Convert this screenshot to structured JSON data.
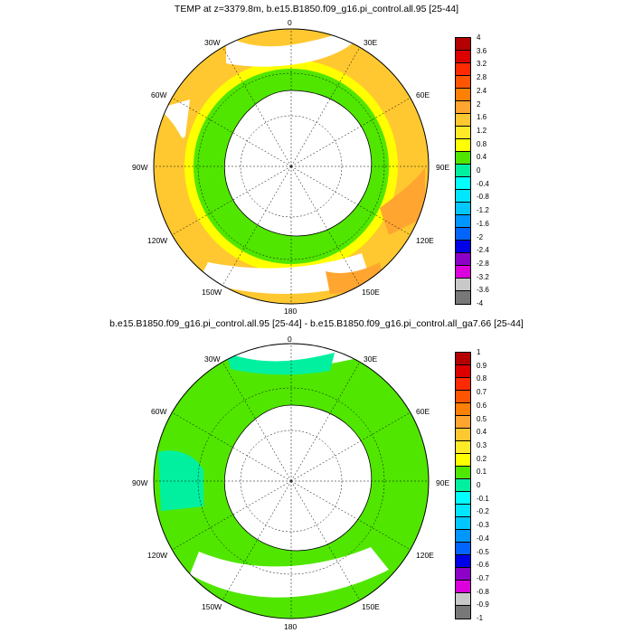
{
  "panels": [
    {
      "title": "TEMP at z=3379.8m, b.e15.B1850.f09_g16.pi_control.all.95 [25-44]",
      "lon_labels": {
        "top": "0",
        "tr": "30E",
        "rt": "60E",
        "right": "90E",
        "br": "120E",
        "bt": "150E",
        "bottom": "180",
        "bl": "150W",
        "lb": "120W",
        "left": "90W",
        "lt": "60W",
        "tl": "30W"
      },
      "colorbar": {
        "labels": [
          "4",
          "3.6",
          "3.2",
          "2.8",
          "2.4",
          "2",
          "1.6",
          "1.2",
          "0.8",
          "0.4",
          "0",
          "-0.4",
          "-0.8",
          "-1.2",
          "-1.6",
          "-2",
          "-2.4",
          "-2.8",
          "-3.2",
          "-3.6",
          "-4"
        ],
        "colors": [
          "#b40000",
          "#dc0000",
          "#ff2a00",
          "#ff5500",
          "#ff8000",
          "#ffa530",
          "#ffc830",
          "#ffea28",
          "#ffff00",
          "#50e600",
          "#00f0a0",
          "#00ffff",
          "#00e6ff",
          "#00c8ff",
          "#0096ff",
          "#0064ff",
          "#0000e6",
          "#8c00c8",
          "#dc00dc",
          "#c8c8c8",
          "#787878"
        ]
      }
    },
    {
      "title": "b.e15.B1850.f09_g16.pi_control.all.95 [25-44] - b.e15.B1850.f09_g16.pi_control.all_ga7.66 [25-44]",
      "lon_labels": {
        "top": "0",
        "tr": "30E",
        "rt": "60E",
        "right": "90E",
        "br": "120E",
        "bt": "150E",
        "bottom": "180",
        "bl": "150W",
        "lb": "120W",
        "left": "90W",
        "lt": "60W",
        "tl": "30W"
      },
      "colorbar": {
        "labels": [
          "1",
          "0.9",
          "0.8",
          "0.7",
          "0.6",
          "0.5",
          "0.4",
          "0.3",
          "0.2",
          "0.1",
          "0",
          "-0.1",
          "-0.2",
          "-0.3",
          "-0.4",
          "-0.5",
          "-0.6",
          "-0.7",
          "-0.8",
          "-0.9",
          "-1"
        ],
        "colors": [
          "#b40000",
          "#dc0000",
          "#ff2a00",
          "#ff5500",
          "#ff8000",
          "#ffa530",
          "#ffc830",
          "#ffea28",
          "#ffff00",
          "#50e600",
          "#00f0a0",
          "#00ffff",
          "#00e6ff",
          "#00c8ff",
          "#0096ff",
          "#0064ff",
          "#0000e6",
          "#8c00c8",
          "#dc00dc",
          "#c8c8c8",
          "#787878"
        ]
      }
    }
  ]
}
